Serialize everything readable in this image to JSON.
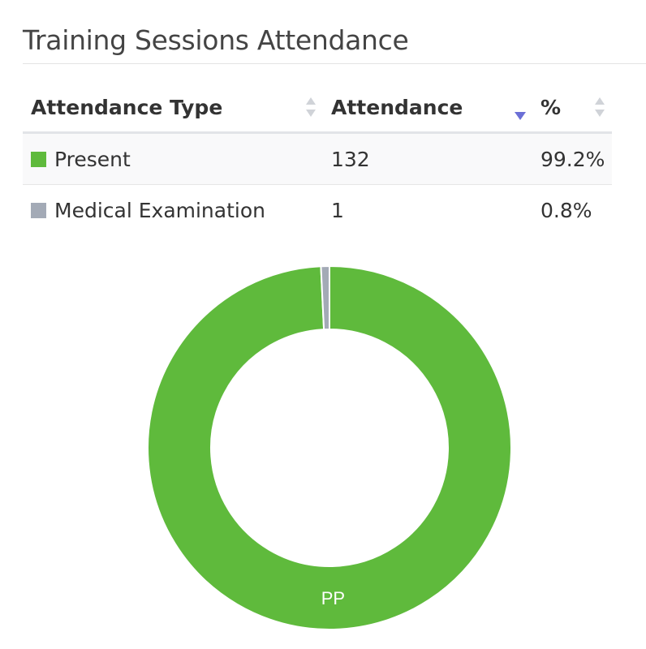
{
  "widget": {
    "title": "Training Sessions Attendance"
  },
  "table": {
    "headers": {
      "type": "Attendance Type",
      "attendance": "Attendance",
      "percent": "%"
    },
    "sort": {
      "column": "attendance",
      "direction": "descending"
    },
    "rows": [
      {
        "type": "Present",
        "attendance": "132",
        "percent": "99.2%",
        "color": "#5fba3c"
      },
      {
        "type": "Medical Examination",
        "attendance": "1",
        "percent": "0.8%",
        "color": "#a3aab6"
      }
    ]
  },
  "colors": {
    "sort_active": "#6b6fd6",
    "sort_inactive": "#d0d3d8"
  },
  "chart_data": {
    "type": "pie",
    "donut": true,
    "categories": [
      "Present",
      "Medical Examination"
    ],
    "values": [
      132,
      1
    ],
    "percentages": [
      99.2,
      0.8
    ],
    "colors": [
      "#5fba3c",
      "#a3aab6"
    ],
    "slice_labels": [
      "PP",
      ""
    ],
    "legend": "table"
  }
}
